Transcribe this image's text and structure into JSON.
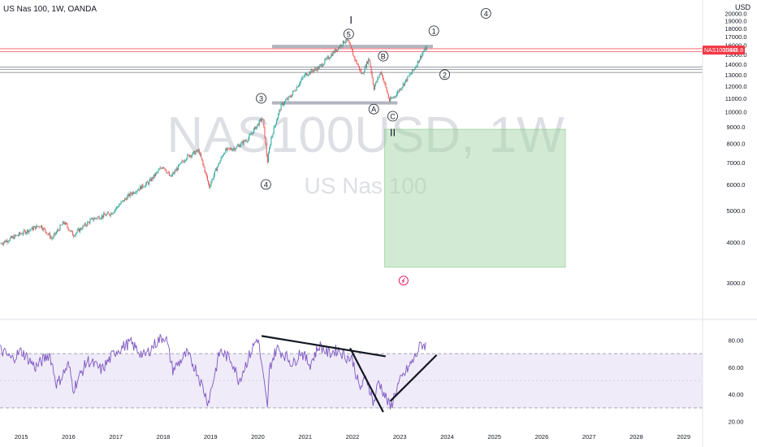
{
  "header": {
    "title": "US Nas 100, 1W, OANDA",
    "currency": "USD"
  },
  "watermark": {
    "symbol": "NAS100USD, 1W",
    "name": "US Nas 100"
  },
  "price_tag": {
    "symbol": "NAS100USD",
    "value": "15446.8",
    "color": "#f23645"
  },
  "colors": {
    "up": "#26a69a",
    "down": "#ef5350",
    "rsi_line": "#7e57c2",
    "rsi_band": "#7e57c2",
    "zone": "#a5d6a7",
    "hline": "#787b86",
    "support_band": "#b2b5be"
  },
  "chart_data": [
    {
      "type": "line",
      "title": "",
      "y_axis_labels": [
        "3000.0",
        "4000.0",
        "5000.0",
        "6000.0",
        "7000.0",
        "8000.0",
        "9000.0",
        "10000.0",
        "11000.0",
        "12000.0",
        "13000.0",
        "14000.0",
        "15000.0",
        "16000.0",
        "17000.0",
        "18000.0",
        "19000.0",
        "20000.0"
      ],
      "x_axis_labels": [
        "2015",
        "2016",
        "2017",
        "2018",
        "2019",
        "2020",
        "2021",
        "2022",
        "2023",
        "2024",
        "2025",
        "2026",
        "2027",
        "2028",
        "2029"
      ],
      "ylim": [
        2500,
        21000
      ],
      "xlim": [
        2014.55,
        2029.4
      ],
      "grid": false,
      "log_scale": true,
      "series": [
        {
          "x": [
            2014.55,
            2015.0,
            2015.4,
            2015.65,
            2015.9,
            2016.1,
            2016.5,
            2016.9,
            2017.3,
            2017.7,
            2018.0,
            2018.15,
            2018.5,
            2018.75,
            2018.97,
            2019.3,
            2019.55,
            2019.8,
            2020.1,
            2020.2,
            2020.28,
            2020.5,
            2020.7,
            2021.0,
            2021.3,
            2021.6,
            2021.88,
            2022.05,
            2022.2,
            2022.35,
            2022.45,
            2022.6,
            2022.78,
            2022.92,
            2023.1,
            2023.3,
            2023.5,
            2023.58
          ],
          "y": [
            3950,
            4250,
            4500,
            4100,
            4600,
            4200,
            4700,
            4900,
            5600,
            6100,
            6850,
            6300,
            7300,
            7600,
            5900,
            7600,
            7800,
            8300,
            9600,
            7000,
            8300,
            10500,
            11200,
            13000,
            13700,
            15200,
            16700,
            14500,
            13000,
            14600,
            11800,
            13300,
            10800,
            11300,
            12300,
            13500,
            15300,
            15800
          ]
        }
      ],
      "annotations": {
        "wave_labels": [
          {
            "text": "3",
            "x": 2020.07,
            "y": 11000
          },
          {
            "text": "4",
            "x": 2020.17,
            "y": 6000
          },
          {
            "text": "5",
            "x": 2021.92,
            "y": 17300
          },
          {
            "text": "I",
            "x": 2021.97,
            "y": 19000
          },
          {
            "text": "A",
            "x": 2022.45,
            "y": 10200
          },
          {
            "text": "B",
            "x": 2022.65,
            "y": 14800
          },
          {
            "text": "C",
            "x": 2022.85,
            "y": 9700
          },
          {
            "text": "II",
            "x": 2022.85,
            "y": 8600
          },
          {
            "text": "1",
            "x": 2023.72,
            "y": 17700
          },
          {
            "text": "2",
            "x": 2023.95,
            "y": 13000
          },
          {
            "text": "4",
            "x": 2024.82,
            "y": 20000
          }
        ],
        "hlines": [
          15300,
          15600,
          13700,
          13500,
          13200
        ],
        "bands": [
          {
            "from_x": 2020.3,
            "to_x": 2023.7,
            "y": 15850
          },
          {
            "from_x": 2020.3,
            "to_x": 2022.95,
            "y": 10650
          }
        ],
        "target_zone": {
          "x0": 2022.68,
          "x1": 2026.5,
          "y_low": 3350,
          "y_high": 8850
        }
      }
    },
    {
      "type": "line",
      "title": "",
      "y_axis_labels": [
        "20.00",
        "40.00",
        "60.00",
        "80.00"
      ],
      "ylim": [
        18,
        88
      ],
      "band": [
        30,
        70
      ],
      "series": [
        {
          "x": [
            2014.55,
            2014.8,
            2015.0,
            2015.3,
            2015.6,
            2015.75,
            2016.0,
            2016.1,
            2016.4,
            2016.7,
            2017.0,
            2017.3,
            2017.6,
            2017.9,
            2018.05,
            2018.2,
            2018.5,
            2018.7,
            2018.95,
            2019.2,
            2019.45,
            2019.6,
            2019.9,
            2020.0,
            2020.2,
            2020.25,
            2020.4,
            2020.6,
            2020.75,
            2020.9,
            2021.1,
            2021.3,
            2021.5,
            2021.7,
            2021.85,
            2022.0,
            2022.15,
            2022.3,
            2022.45,
            2022.55,
            2022.7,
            2022.8,
            2022.95,
            2023.1,
            2023.3,
            2023.45,
            2023.55
          ],
          "y": [
            73,
            66,
            72,
            60,
            70,
            47,
            62,
            44,
            65,
            58,
            72,
            78,
            68,
            80,
            83,
            58,
            70,
            58,
            34,
            72,
            65,
            50,
            75,
            82,
            30,
            60,
            74,
            68,
            62,
            72,
            62,
            76,
            70,
            73,
            68,
            66,
            44,
            52,
            33,
            50,
            38,
            30,
            46,
            55,
            66,
            77,
            76
          ]
        }
      ],
      "annotations": {
        "trendlines": [
          {
            "x1": 2020.08,
            "y1": 83,
            "x2": 2022.7,
            "y2": 68
          },
          {
            "x1": 2021.95,
            "y1": 74,
            "x2": 2022.65,
            "y2": 27
          },
          {
            "x1": 2022.8,
            "y1": 35,
            "x2": 2023.78,
            "y2": 69
          }
        ]
      }
    }
  ]
}
